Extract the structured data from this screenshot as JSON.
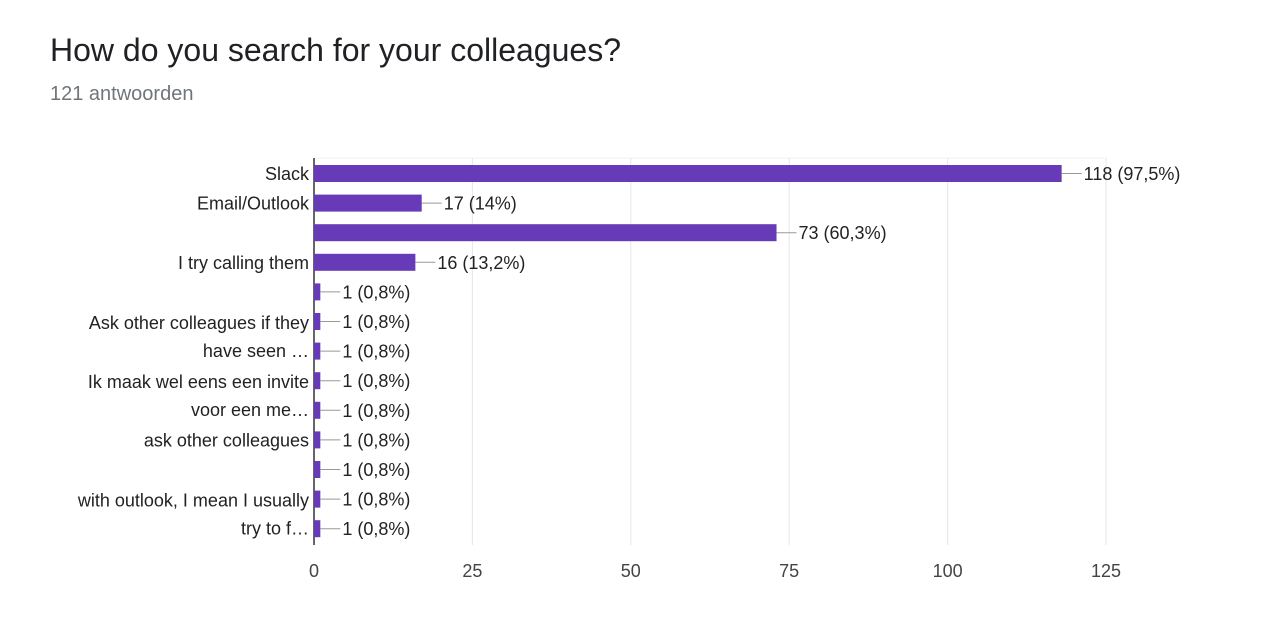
{
  "header": {
    "title": "How do you search for your colleagues?",
    "subtitle": "121 antwoorden"
  },
  "chart_data": {
    "type": "bar",
    "orientation": "horizontal",
    "title": "",
    "xlabel": "",
    "ylabel": "",
    "xlim": [
      0,
      125
    ],
    "xticks": [
      0,
      25,
      50,
      75,
      100,
      125
    ],
    "grid": true,
    "bar_color": "#673ab7",
    "categories": [
      [
        "Slack"
      ],
      [
        "Email/Outlook"
      ],
      [],
      [
        "I try calling them"
      ],
      [],
      [
        "Ask other colleagues if they",
        "have seen …"
      ],
      [],
      [
        "Ik maak wel eens een invite",
        "voor een me…"
      ],
      [],
      [
        "ask other colleagues"
      ],
      [],
      [
        "with outlook, I mean I usually",
        "try to f…"
      ],
      []
    ],
    "values": [
      118,
      17,
      73,
      16,
      1,
      1,
      1,
      1,
      1,
      1,
      1,
      1,
      1
    ],
    "data_labels": [
      "118 (97,5%)",
      "17 (14%)",
      "73 (60,3%)",
      "16 (13,2%)",
      "1 (0,8%)",
      "1 (0,8%)",
      "1 (0,8%)",
      "1 (0,8%)",
      "1 (0,8%)",
      "1 (0,8%)",
      "1 (0,8%)",
      "1 (0,8%)",
      "1 (0,8%)"
    ]
  }
}
